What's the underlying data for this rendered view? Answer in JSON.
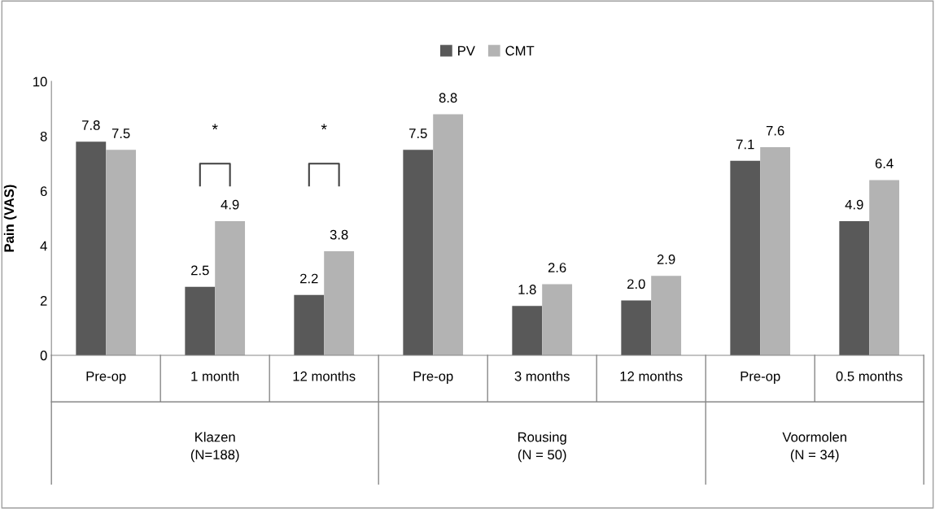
{
  "chart_data": {
    "type": "bar",
    "ylabel": "Pain (VAS)",
    "categories": [
      "Pre-op",
      "1 month",
      "12 months",
      "Pre-op",
      "3 months",
      "12 months",
      "Pre-op",
      "0.5 months"
    ],
    "series": [
      {
        "name": "PV",
        "color": "#595959",
        "values": [
          7.8,
          2.5,
          2.2,
          7.5,
          1.8,
          2.0,
          7.1,
          4.9
        ],
        "value_labels": [
          "7.8",
          "2.5",
          "2.2",
          "7.5",
          "1.8",
          "2.0",
          "7.1",
          "4.9"
        ]
      },
      {
        "name": "CMT",
        "color": "#b3b3b3",
        "values": [
          7.5,
          4.9,
          3.8,
          8.8,
          2.6,
          2.9,
          7.6,
          6.4
        ],
        "value_labels": [
          "7.5",
          "4.9",
          "3.8",
          "8.8",
          "2.6",
          "2.9",
          "7.6",
          "6.4"
        ]
      }
    ],
    "ylim": [
      0,
      10
    ],
    "yticks": [
      0,
      2,
      4,
      6,
      8,
      10
    ],
    "grid": false,
    "legend": "top",
    "annotations": [
      "*",
      "*",
      "Klazen\n(N=188)",
      "Rousing\n(N = 50)",
      "Voormolen\n(N = 34)"
    ]
  }
}
